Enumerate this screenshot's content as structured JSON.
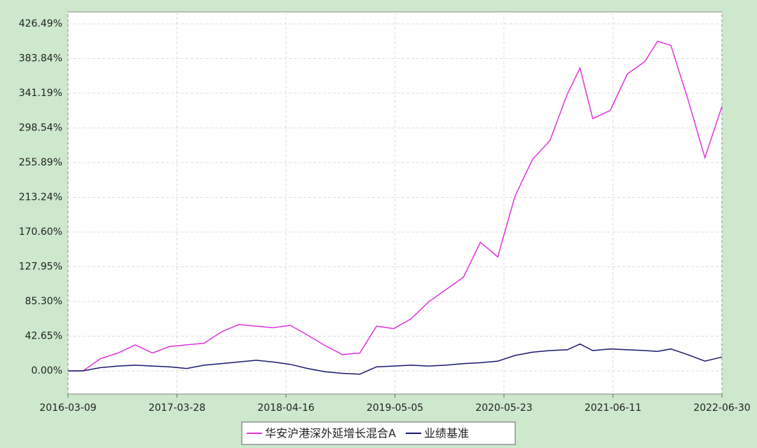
{
  "chart_data": {
    "type": "line",
    "x": [
      "2016-03-09",
      "2016-05-01",
      "2016-07-01",
      "2016-09-01",
      "2016-11-01",
      "2017-01-01",
      "2017-03-01",
      "2017-05-01",
      "2017-07-01",
      "2017-09-01",
      "2017-11-01",
      "2018-01-01",
      "2018-03-01",
      "2018-05-01",
      "2018-07-01",
      "2018-09-01",
      "2018-11-01",
      "2019-01-01",
      "2019-03-01",
      "2019-05-01",
      "2019-07-01",
      "2019-09-01",
      "2019-11-01",
      "2020-01-01",
      "2020-03-01",
      "2020-05-01",
      "2020-07-01",
      "2020-09-01",
      "2020-11-01",
      "2021-01-01",
      "2021-02-15",
      "2021-04-01",
      "2021-06-01",
      "2021-08-01",
      "2021-10-01",
      "2021-11-15",
      "2022-01-01",
      "2022-03-01",
      "2022-05-01",
      "2022-06-30"
    ],
    "series": [
      {
        "name": "华安沪港深外延增长混合A",
        "color": "#e033e0",
        "values": [
          0,
          0,
          15,
          22,
          32,
          22,
          30,
          32,
          34,
          48,
          57,
          55,
          53,
          56,
          44,
          31,
          20,
          22,
          55,
          52,
          64,
          85,
          100,
          115,
          158,
          140,
          215,
          260,
          283,
          340,
          372,
          310,
          320,
          365,
          380,
          405,
          400,
          335,
          262,
          325
        ]
      },
      {
        "name": "业绩基准",
        "color": "#1a1a70",
        "values": [
          0,
          0,
          4,
          6,
          7,
          6,
          5,
          3,
          7,
          9,
          11,
          13,
          11,
          8,
          3,
          -1,
          -3,
          -4,
          5,
          6,
          7,
          6,
          7,
          9,
          10,
          12,
          19,
          23,
          25,
          26,
          33,
          25,
          27,
          26,
          25,
          24,
          27,
          20,
          12,
          17
        ]
      }
    ],
    "xlim": [
      "2016-03-09",
      "2022-06-30"
    ],
    "xticks": [
      "2016-03-09",
      "2017-03-28",
      "2018-04-16",
      "2019-05-05",
      "2020-05-23",
      "2021-06-11",
      "2022-06-30"
    ],
    "ylim": [
      -28.4,
      441.1
    ],
    "yticks": [
      {
        "value": 0,
        "label": "0.00%"
      },
      {
        "value": 42.65,
        "label": "42.65%"
      },
      {
        "value": 85.3,
        "label": "85.30%"
      },
      {
        "value": 127.95,
        "label": "127.95%"
      },
      {
        "value": 170.6,
        "label": "170.60%"
      },
      {
        "value": 213.24,
        "label": "213.24%"
      },
      {
        "value": 255.89,
        "label": "255.89%"
      },
      {
        "value": 298.54,
        "label": "298.54%"
      },
      {
        "value": 341.19,
        "label": "341.19%"
      },
      {
        "value": 383.84,
        "label": "383.84%"
      },
      {
        "value": 426.49,
        "label": "426.49%"
      }
    ],
    "grid": true
  }
}
